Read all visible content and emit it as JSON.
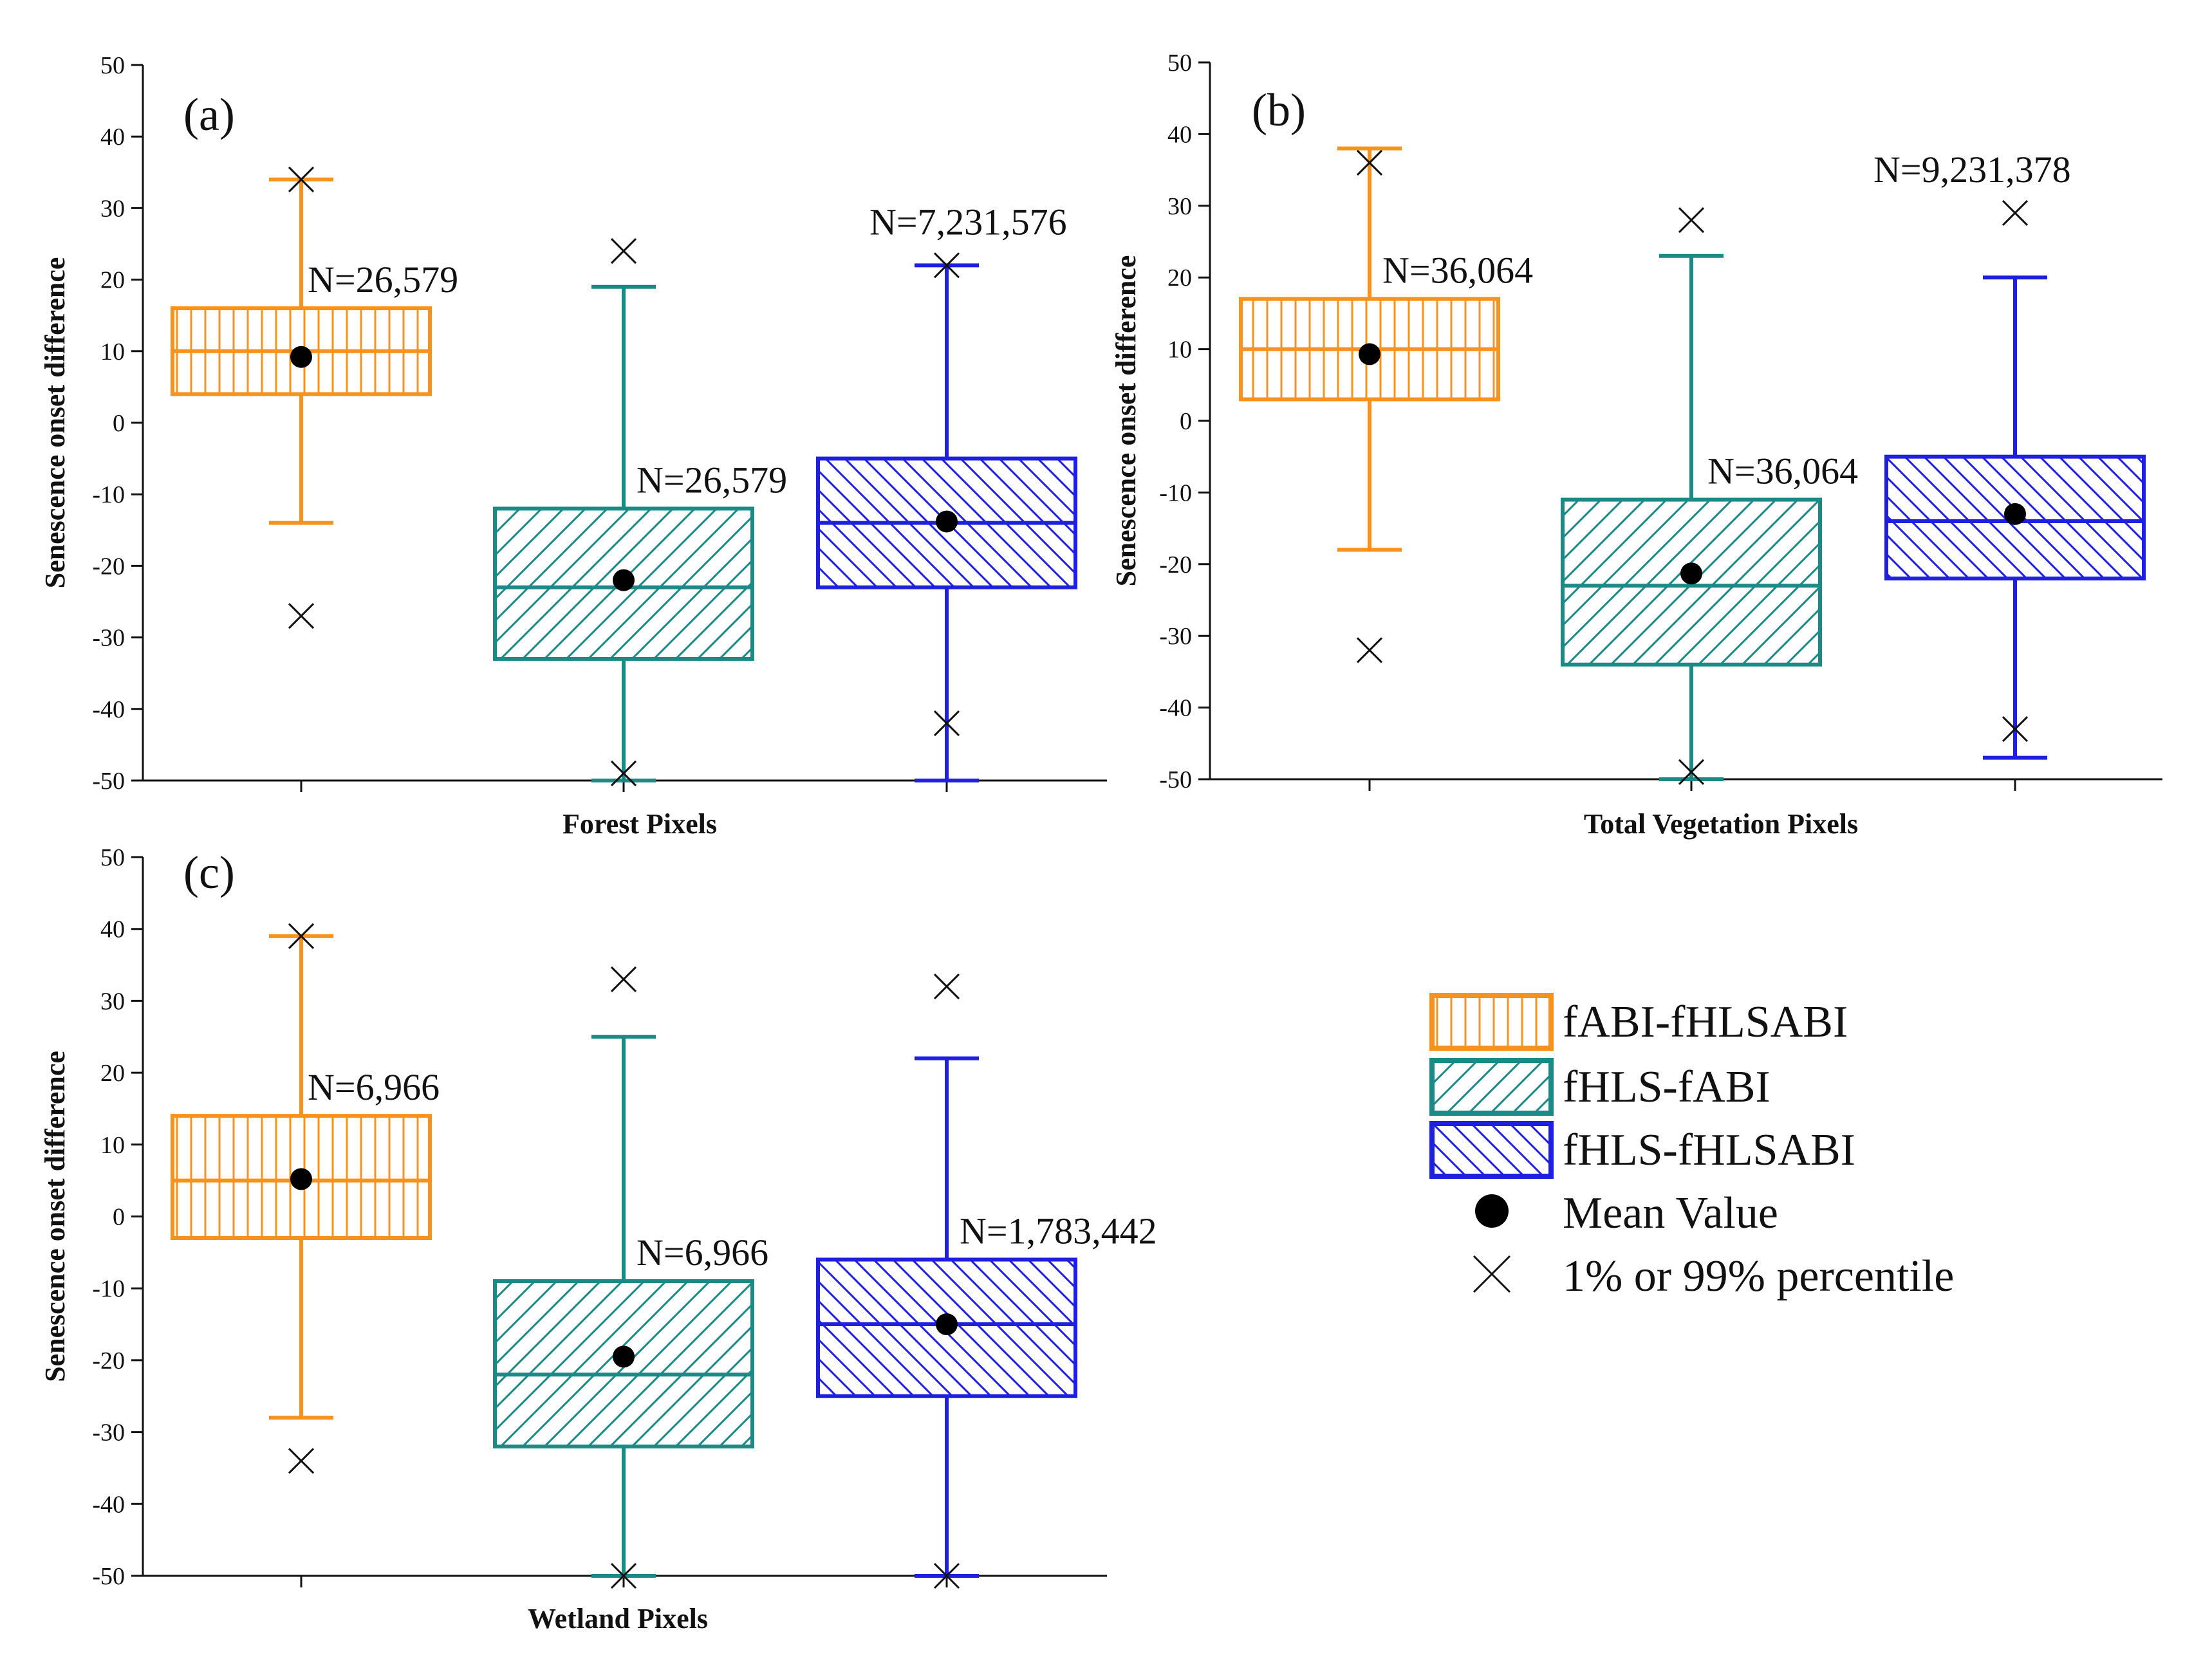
{
  "chart_data": [
    {
      "type": "box",
      "panel_tag": "(a)",
      "xlabel": "Forest Pixels",
      "ylabel": "Senescence onset difference",
      "ylim": [
        -50,
        50
      ],
      "yticks": [
        50,
        40,
        30,
        20,
        10,
        0,
        -10,
        -20,
        -30,
        -40,
        -50
      ],
      "ytick_labels": [
        "50",
        "40",
        "30",
        "20",
        "10",
        "0",
        "-10",
        "-20",
        "-30",
        "-40",
        "-50"
      ],
      "boxes": [
        {
          "series": "fABI-fHLSABI",
          "whisker_low": -14,
          "q1": 4,
          "median": 10,
          "q3": 16,
          "whisker_high": 34,
          "mean": 9.2,
          "p1": -27,
          "p99": 34,
          "n_label": "N=26,579"
        },
        {
          "series": "fHLS-fABI",
          "whisker_low": -50,
          "q1": -33,
          "median": -23,
          "q3": -12,
          "whisker_high": 19,
          "mean": -22,
          "p1": -49,
          "p99": 24,
          "n_label": "N=26,579"
        },
        {
          "series": "fHLS-fHLSABI",
          "whisker_low": -50,
          "q1": -23,
          "median": -14,
          "q3": -5,
          "whisker_high": 22,
          "mean": -13.8,
          "p1": -42,
          "p99": 22,
          "n_label": "N=7,231,576"
        }
      ]
    },
    {
      "type": "box",
      "panel_tag": "(b)",
      "xlabel": "Total Vegetation Pixels",
      "ylabel": "Senescence onset difference",
      "ylim": [
        -50,
        50
      ],
      "yticks": [
        50,
        40,
        30,
        20,
        10,
        0,
        -10,
        -20,
        -30,
        -40,
        -50
      ],
      "ytick_labels": [
        "50",
        "40",
        "30",
        "20",
        "10",
        "0",
        "-10",
        "-20",
        "-30",
        "-40",
        "-50"
      ],
      "boxes": [
        {
          "series": "fABI-fHLSABI",
          "whisker_low": -18,
          "q1": 3,
          "median": 10,
          "q3": 17,
          "whisker_high": 38,
          "mean": 9.3,
          "p1": -32,
          "p99": 36,
          "n_label": "N=36,064"
        },
        {
          "series": "fHLS-fABI",
          "whisker_low": -50,
          "q1": -34,
          "median": -23,
          "q3": -11,
          "whisker_high": 23,
          "mean": -21.3,
          "p1": -49,
          "p99": 28,
          "n_label": "N=36,064"
        },
        {
          "series": "fHLS-fHLSABI",
          "whisker_low": -47,
          "q1": -22,
          "median": -14,
          "q3": -5,
          "whisker_high": 20,
          "mean": -13,
          "p1": -43,
          "p99": 29,
          "n_label": "N=9,231,378"
        }
      ]
    },
    {
      "type": "box",
      "panel_tag": "(c)",
      "xlabel": "Wetland Pixels",
      "ylabel": "Senescence onset difference",
      "ylim": [
        -50,
        50
      ],
      "yticks": [
        50,
        40,
        30,
        20,
        10,
        0,
        -10,
        -20,
        -30,
        -40,
        -50
      ],
      "ytick_labels": [
        "50",
        "40",
        "30",
        "20",
        "10",
        "0",
        "-10",
        "-20",
        "-30",
        "-40",
        "-50"
      ],
      "boxes": [
        {
          "series": "fABI-fHLSABI",
          "whisker_low": -28,
          "q1": -3,
          "median": 5,
          "q3": 14,
          "whisker_high": 39,
          "mean": 5.2,
          "p1": -34,
          "p99": 39,
          "n_label": "N=6,966"
        },
        {
          "series": "fHLS-fABI",
          "whisker_low": -50,
          "q1": -32,
          "median": -22,
          "q3": -9,
          "whisker_high": 25,
          "mean": -19.5,
          "p1": -50,
          "p99": 33,
          "n_label": "N=6,966"
        },
        {
          "series": "fHLS-fHLSABI",
          "whisker_low": -50,
          "q1": -25,
          "median": -15,
          "q3": -6,
          "whisker_high": 22,
          "mean": -15,
          "p1": -50,
          "p99": 32,
          "n_label": "N=1,783,442"
        }
      ]
    }
  ],
  "series_styles": [
    {
      "name": "fABI-fHLSABI",
      "color": "#f7921e",
      "hatch": "vertical"
    },
    {
      "name": "fHLS-fABI",
      "color": "#1b8a86",
      "hatch": "diagonal-up"
    },
    {
      "name": "fHLS-fHLSABI",
      "color": "#1f1fe0",
      "hatch": "diagonal-down"
    }
  ],
  "legend": {
    "items": [
      {
        "label": "fABI-fHLSABI",
        "marker": "box",
        "series": "fABI-fHLSABI"
      },
      {
        "label": "fHLS-fABI",
        "marker": "box",
        "series": "fHLS-fABI"
      },
      {
        "label": "fHLS-fHLSABI",
        "marker": "box",
        "series": "fHLS-fHLSABI"
      },
      {
        "label": "Mean Value",
        "marker": "dot"
      },
      {
        "label": "1% or 99% percentile",
        "marker": "cross"
      }
    ]
  }
}
